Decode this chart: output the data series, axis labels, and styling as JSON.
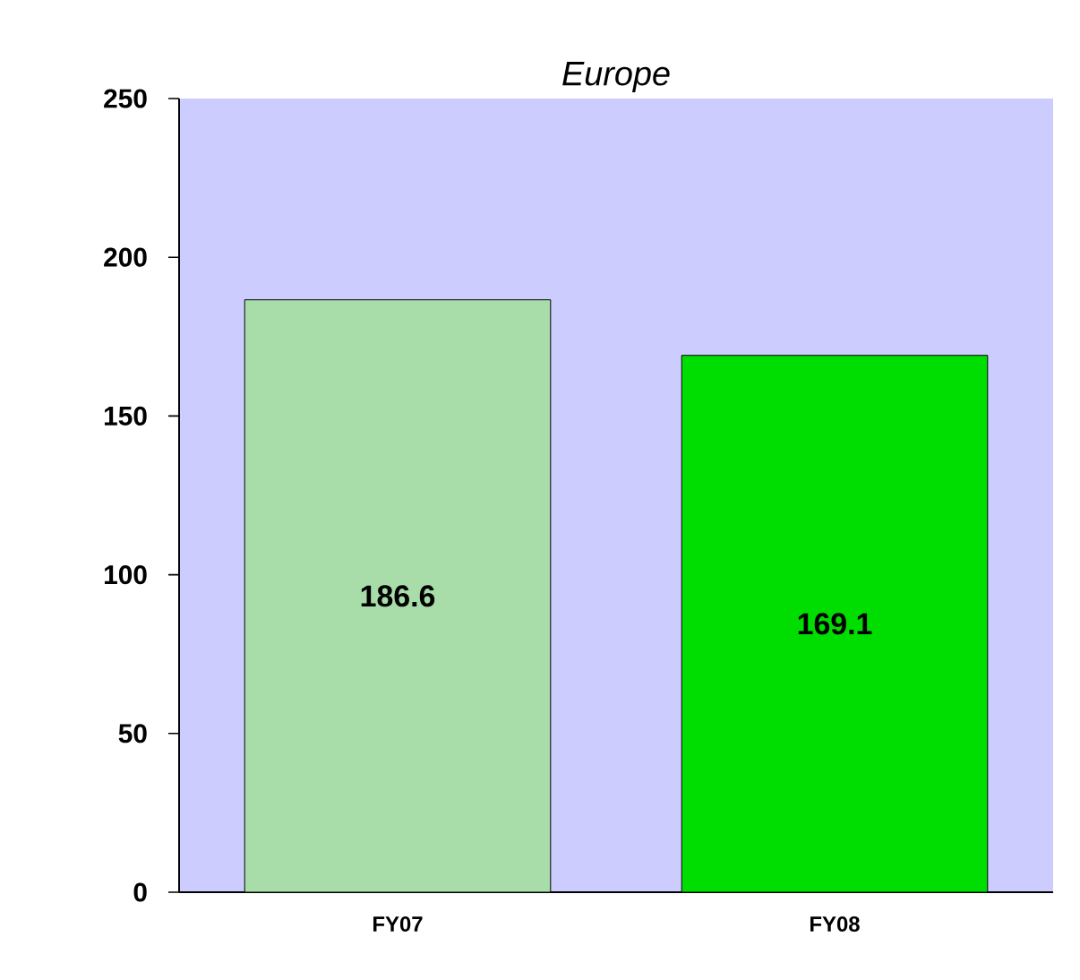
{
  "chart_data": {
    "type": "bar",
    "title": "Europe",
    "categories": [
      "FY07",
      "FY08"
    ],
    "values": [
      186.6,
      169.1
    ],
    "colors": [
      "#a8dca8",
      "#00dd00"
    ],
    "ylim": [
      0,
      250
    ],
    "yticks": [
      0,
      50,
      100,
      150,
      200,
      250
    ],
    "data_labels": true
  }
}
